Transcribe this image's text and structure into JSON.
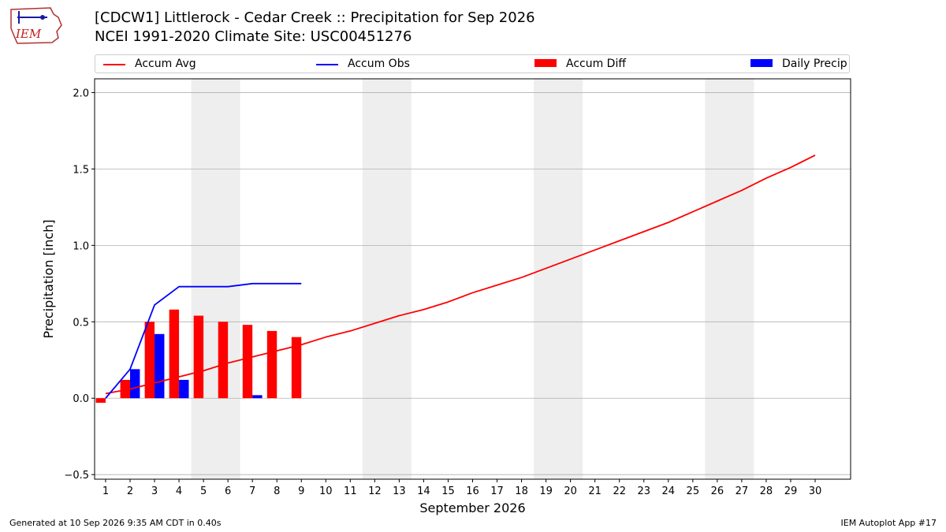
{
  "header": {
    "title_line1": "[CDCW1] Littlerock - Cedar Creek :: Precipitation for Sep 2026",
    "title_line2": "NCEI 1991-2020 Climate Site: USC00451276",
    "logo_text": "IEM"
  },
  "legend": {
    "accum_avg": "Accum Avg",
    "accum_obs": "Accum Obs",
    "accum_diff": "Accum Diff",
    "daily_precip": "Daily Precip"
  },
  "footer": {
    "generated": "Generated at 10 Sep 2026 9:35 AM CDT in 0.40s",
    "app": "IEM Autoplot App #17"
  },
  "colors": {
    "avg": "#ff0000",
    "obs": "#0000ff",
    "diff": "#ff0000",
    "daily": "#0000ff",
    "weekend": "#eeeeee",
    "grid": "#b0b0b0"
  },
  "chart_data": {
    "type": "bar",
    "xlabel": "September 2026",
    "ylabel": "Precipitation [inch]",
    "ylim": [
      -0.53,
      2.09
    ],
    "xlim": [
      0.55,
      31.45
    ],
    "yticks": [
      -0.5,
      0.0,
      0.5,
      1.0,
      1.5,
      2.0
    ],
    "ytick_labels": [
      "−0.5",
      "0.0",
      "0.5",
      "1.0",
      "1.5",
      "2.0"
    ],
    "days": [
      1,
      2,
      3,
      4,
      5,
      6,
      7,
      8,
      9,
      10,
      11,
      12,
      13,
      14,
      15,
      16,
      17,
      18,
      19,
      20,
      21,
      22,
      23,
      24,
      25,
      26,
      27,
      28,
      29,
      30
    ],
    "weekend_spans": [
      [
        4.5,
        6.5
      ],
      [
        11.5,
        13.5
      ],
      [
        18.5,
        20.5
      ],
      [
        25.5,
        27.5
      ]
    ],
    "grid": true,
    "legend_position": "top",
    "series": [
      {
        "name": "Accum Avg",
        "kind": "line",
        "x": [
          1,
          2,
          3,
          4,
          5,
          6,
          7,
          8,
          9,
          10,
          11,
          12,
          13,
          14,
          15,
          16,
          17,
          18,
          19,
          20,
          21,
          22,
          23,
          24,
          25,
          26,
          27,
          28,
          29,
          30
        ],
        "values": [
          0.03,
          0.06,
          0.1,
          0.14,
          0.18,
          0.23,
          0.27,
          0.31,
          0.35,
          0.4,
          0.44,
          0.49,
          0.54,
          0.58,
          0.63,
          0.69,
          0.74,
          0.79,
          0.85,
          0.91,
          0.97,
          1.03,
          1.09,
          1.15,
          1.22,
          1.29,
          1.36,
          1.44,
          1.51,
          1.59
        ]
      },
      {
        "name": "Accum Obs",
        "kind": "line",
        "x": [
          1,
          2,
          3,
          4,
          5,
          6,
          7,
          8,
          9
        ],
        "values": [
          0.0,
          0.19,
          0.61,
          0.73,
          0.73,
          0.73,
          0.75,
          0.75,
          0.75
        ]
      },
      {
        "name": "Accum Diff",
        "kind": "bar",
        "x": [
          1,
          2,
          3,
          4,
          5,
          6,
          7,
          8,
          9
        ],
        "values": [
          -0.03,
          0.12,
          0.5,
          0.58,
          0.54,
          0.5,
          0.48,
          0.44,
          0.4
        ]
      },
      {
        "name": "Daily Precip",
        "kind": "bar",
        "x": [
          1,
          2,
          3,
          4,
          5,
          6,
          7,
          8,
          9
        ],
        "values": [
          0.0,
          0.19,
          0.42,
          0.12,
          0.0,
          0.0,
          0.02,
          0.0,
          0.0
        ]
      }
    ]
  }
}
